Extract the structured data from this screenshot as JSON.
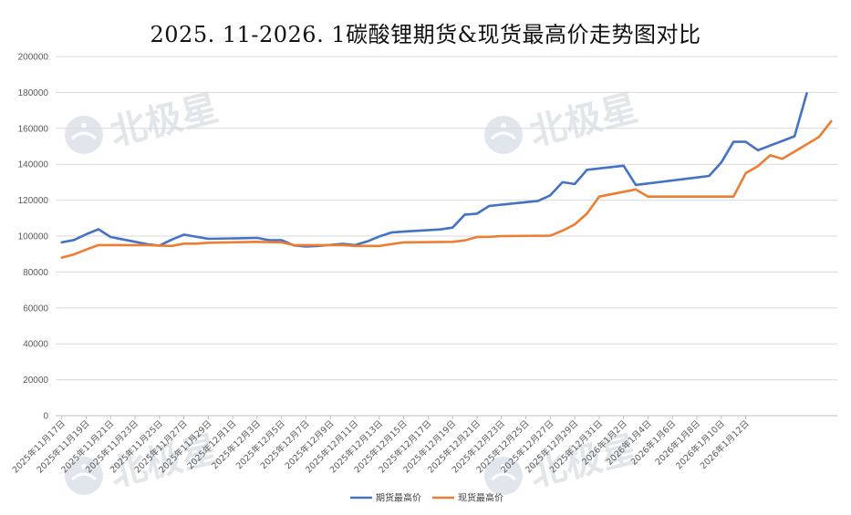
{
  "chart_data": {
    "type": "line",
    "title": "2025. 11-2026. 1碳酸锂期货&现货最高价走势图对比",
    "xlabel": "",
    "ylabel": "",
    "ylim": [
      0,
      200000
    ],
    "yticks": [
      0,
      20000,
      40000,
      60000,
      80000,
      100000,
      120000,
      140000,
      160000,
      180000,
      200000
    ],
    "grid": true,
    "legend_position": "bottom",
    "x": [
      "2025/11/17",
      "2025/11/18",
      "2025/11/19",
      "2025/11/20",
      "2025/11/21",
      "2025/11/22",
      "2025/11/23",
      "2025/11/24",
      "2025/11/25",
      "2025/11/26",
      "2025/11/27",
      "2025/11/28",
      "2025/11/29",
      "2025/11/30",
      "2025/12/1",
      "2025/12/2",
      "2025/12/3",
      "2025/12/4",
      "2025/12/5",
      "2025/12/6",
      "2025/12/7",
      "2025/12/8",
      "2025/12/9",
      "2025/12/10",
      "2025/12/11",
      "2025/12/12",
      "2025/12/13",
      "2025/12/14",
      "2025/12/15",
      "2025/12/16",
      "2025/12/17",
      "2025/12/18",
      "2025/12/19",
      "2025/12/20",
      "2025/12/21",
      "2025/12/22",
      "2025/12/23",
      "2025/12/24",
      "2025/12/25",
      "2025/12/26",
      "2025/12/27",
      "2025/12/28",
      "2025/12/29",
      "2025/12/30",
      "2025/12/31",
      "2026/1/1",
      "2026/1/2",
      "2026/1/3",
      "2026/1/4",
      "2026/1/5",
      "2026/1/6",
      "2026/1/7",
      "2026/1/8",
      "2026/1/9",
      "2026/1/10",
      "2026/1/11",
      "2026/1/12",
      "2026/1/13"
    ],
    "tick_labels": [
      "2025年11月17日",
      "2025年11月19日",
      "2025年11月21日",
      "2025年11月23日",
      "2025年11月25日",
      "2025年11月27日",
      "2025年11月29日",
      "2025年12月1日",
      "2025年12月3日",
      "2025年12月5日",
      "2025年12月7日",
      "2025年12月9日",
      "2025年12月11日",
      "2025年12月13日",
      "2025年12月15日",
      "2025年12月17日",
      "2025年12月19日",
      "2025年12月21日",
      "2025年12月23日",
      "2025年12月25日",
      "2025年12月27日",
      "2025年12月29日",
      "2025年12月31日",
      "2026年1月2日",
      "2026年1月4日",
      "2026年1月6日",
      "2026年1月8日",
      "2026年1月10日",
      "2026年1月12日"
    ],
    "series": [
      {
        "name": "期货最高价",
        "color": "#4472c4",
        "points": [
          [
            0,
            96500
          ],
          [
            1,
            97800
          ],
          [
            2,
            101000
          ],
          [
            3,
            103800
          ],
          [
            4,
            99500
          ],
          [
            7,
            95500
          ],
          [
            8,
            94700
          ],
          [
            9,
            98000
          ],
          [
            10,
            100800
          ],
          [
            12,
            98500
          ],
          [
            16,
            99000
          ],
          [
            17,
            97700
          ],
          [
            18,
            97700
          ],
          [
            19,
            94800
          ],
          [
            20,
            94200
          ],
          [
            21,
            94500
          ],
          [
            23,
            95700
          ],
          [
            24,
            95000
          ],
          [
            25,
            97000
          ],
          [
            26,
            99800
          ],
          [
            27,
            102000
          ],
          [
            28,
            102500
          ],
          [
            31,
            103700
          ],
          [
            32,
            104700
          ],
          [
            33,
            112000
          ],
          [
            34,
            112500
          ],
          [
            35,
            116800
          ],
          [
            39,
            119600
          ],
          [
            40,
            122700
          ],
          [
            41,
            130000
          ],
          [
            42,
            129000
          ],
          [
            43,
            136900
          ],
          [
            46,
            139200
          ],
          [
            47,
            128500
          ],
          [
            53,
            133500
          ],
          [
            54,
            141000
          ],
          [
            55,
            152500
          ],
          [
            56,
            152500
          ],
          [
            57,
            147800
          ],
          [
            60,
            155600
          ],
          [
            61,
            179500
          ]
        ]
      },
      {
        "name": "现货最高价",
        "color": "#ed7d31",
        "points": [
          [
            0,
            88000
          ],
          [
            1,
            89800
          ],
          [
            2,
            92500
          ],
          [
            3,
            95000
          ],
          [
            7,
            95000
          ],
          [
            8,
            94700
          ],
          [
            9,
            94500
          ],
          [
            10,
            95800
          ],
          [
            11,
            95800
          ],
          [
            12,
            96300
          ],
          [
            16,
            96800
          ],
          [
            18,
            96500
          ],
          [
            19,
            95000
          ],
          [
            23,
            95000
          ],
          [
            24,
            94500
          ],
          [
            26,
            94500
          ],
          [
            28,
            96500
          ],
          [
            32,
            96800
          ],
          [
            33,
            97600
          ],
          [
            34,
            99500
          ],
          [
            35,
            99600
          ],
          [
            36,
            100000
          ],
          [
            40,
            100200
          ],
          [
            41,
            103000
          ],
          [
            42,
            106500
          ],
          [
            43,
            112500
          ],
          [
            44,
            122000
          ],
          [
            47,
            126000
          ],
          [
            48,
            122000
          ],
          [
            55,
            122000
          ],
          [
            56,
            135000
          ],
          [
            57,
            139000
          ],
          [
            58,
            145000
          ],
          [
            59,
            143000
          ],
          [
            62,
            155200
          ],
          [
            63,
            164000
          ]
        ]
      }
    ]
  },
  "watermark": {
    "text": "北极星"
  }
}
